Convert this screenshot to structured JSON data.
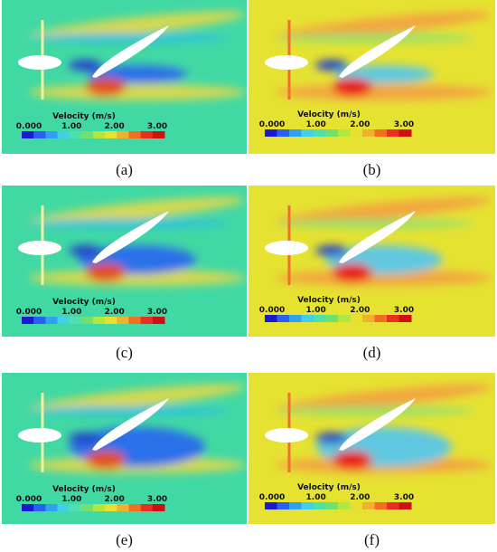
{
  "panels": [
    {
      "caption": "(a)",
      "colorbar": {
        "title": "Velocity (m/s)",
        "ticks": [
          "0.000",
          "1.00",
          "2.00",
          "3.00"
        ]
      }
    },
    {
      "caption": "(b)",
      "colorbar": {
        "title": "Velocity (m/s)",
        "ticks": [
          "0.000",
          "1.00",
          "2.00",
          "3.00"
        ]
      }
    },
    {
      "caption": "(c)",
      "colorbar": {
        "title": "Velocity (m/s)",
        "ticks": [
          "0.000",
          "1.00",
          "2.00",
          "3.00"
        ]
      }
    },
    {
      "caption": "(d)",
      "colorbar": {
        "title": "Velocity (m/s)",
        "ticks": [
          "0.000",
          "1.00",
          "2.00",
          "3.00"
        ]
      }
    },
    {
      "caption": "(e)",
      "colorbar": {
        "title": "Velocity (m/s)",
        "ticks": [
          "0.000",
          "1.00",
          "2.00",
          "3.00"
        ]
      }
    },
    {
      "caption": "(f)",
      "colorbar": {
        "title": "Velocity (m/s)",
        "ticks": [
          "0.000",
          "1.00",
          "2.00",
          "3.00"
        ]
      }
    }
  ]
}
